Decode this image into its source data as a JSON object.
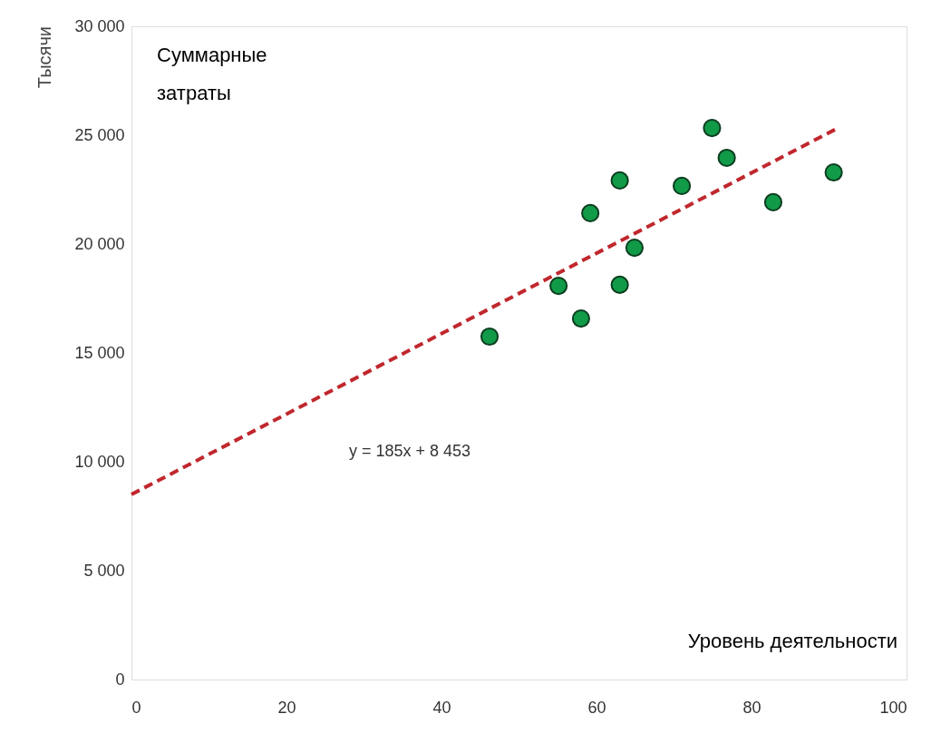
{
  "chart_data": {
    "type": "scatter",
    "xlabel": "Уровень деятельности",
    "ylabel": "Тысячи",
    "x": [
      46.2,
      55.1,
      58.0,
      59.2,
      63.0,
      63.0,
      64.9,
      71.0,
      74.9,
      76.8,
      82.8,
      90.6
    ],
    "series": [
      {
        "color": "#119a48",
        "marker": "circle",
        "values": [
          15750,
          18080,
          16580,
          21420,
          22920,
          18130,
          19830,
          22670,
          25330,
          23960,
          21920,
          23290
        ]
      },
      {
        "type": "line",
        "color": "#c0272d",
        "line_style": "dashed",
        "x": [
          0,
          91
        ],
        "values": [
          8500,
          25300
        ]
      }
    ],
    "xlim": [
      0,
      100
    ],
    "xticks": [
      0,
      20,
      40,
      60,
      80,
      100
    ],
    "ylim": [
      0,
      30000
    ],
    "yticks": [
      0,
      {
        "value": 5000,
        "label": "5 000"
      },
      {
        "value": 10000,
        "label": "10 000"
      },
      {
        "value": 15000,
        "label": "15 000"
      },
      {
        "value": 20000,
        "label": "20 000"
      },
      {
        "value": 25000,
        "label": "25 000"
      },
      {
        "value": 30000,
        "label": "30 000"
      }
    ],
    "annotations": [
      "Суммарные\nзатраты",
      "y = 185x + 8 453"
    ],
    "grid": false
  }
}
